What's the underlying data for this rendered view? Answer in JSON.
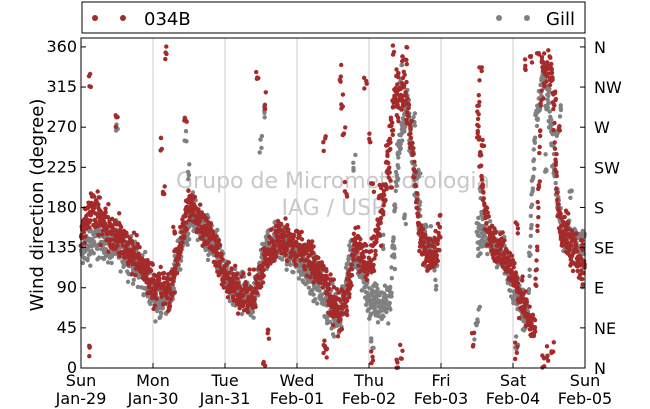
{
  "chart_data": {
    "type": "scatter",
    "ylabel": "Wind direction (degree)",
    "ylim": [
      0,
      370
    ],
    "y_ticks": [
      0,
      45,
      90,
      135,
      180,
      225,
      270,
      315,
      360
    ],
    "y_tick_labels": [
      "0",
      "45",
      "90",
      "135",
      "180",
      "225",
      "270",
      "315",
      "360"
    ],
    "right_axis_labels": [
      "N",
      "NE",
      "E",
      "SE",
      "S",
      "SW",
      "W",
      "NW",
      "N"
    ],
    "xlim_days": [
      0,
      7
    ],
    "x_ticks": [
      {
        "day": 0,
        "weekday": "Sun",
        "date": "Jan-29"
      },
      {
        "day": 1,
        "weekday": "Mon",
        "date": "Jan-30"
      },
      {
        "day": 2,
        "weekday": "Tue",
        "date": "Jan-31"
      },
      {
        "day": 3,
        "weekday": "Wed",
        "date": "Feb-01"
      },
      {
        "day": 4,
        "weekday": "Thu",
        "date": "Feb-02"
      },
      {
        "day": 5,
        "weekday": "Fri",
        "date": "Feb-03"
      },
      {
        "day": 6,
        "weekday": "Sat",
        "date": "Feb-04"
      },
      {
        "day": 7,
        "weekday": "Sun",
        "date": "Feb-05"
      }
    ],
    "grid": "vertical",
    "watermark": [
      "Grupo de Micrometeorologia",
      "IAG / USP"
    ],
    "legend": [
      {
        "name": "034B",
        "color": "#a52a2a",
        "placement": "left"
      },
      {
        "name": "Gill",
        "color": "#808080",
        "placement": "right"
      }
    ],
    "series": [
      {
        "name": "034B",
        "color": "#a52a2a",
        "profile": [
          [
            0.0,
            150
          ],
          [
            0.15,
            180
          ],
          [
            0.35,
            160
          ],
          [
            0.55,
            145
          ],
          [
            0.8,
            120
          ],
          [
            1.0,
            95
          ],
          [
            1.12,
            90
          ],
          [
            1.25,
            85
          ],
          [
            1.4,
            150
          ],
          [
            1.5,
            185
          ],
          [
            1.7,
            160
          ],
          [
            1.85,
            140
          ],
          [
            2.0,
            100
          ],
          [
            2.2,
            85
          ],
          [
            2.4,
            80
          ],
          [
            2.55,
            120
          ],
          [
            2.75,
            150
          ],
          [
            2.9,
            140
          ],
          [
            3.1,
            130
          ],
          [
            3.3,
            110
          ],
          [
            3.45,
            85
          ],
          [
            3.6,
            60
          ],
          [
            3.7,
            80
          ],
          [
            3.8,
            140
          ],
          [
            4.0,
            110
          ],
          [
            4.2,
            180
          ],
          [
            4.35,
            300
          ],
          [
            4.5,
            310
          ],
          [
            4.6,
            250
          ],
          [
            4.7,
            150
          ],
          [
            4.8,
            130
          ],
          [
            4.9,
            125
          ],
          [
            5.0,
            150
          ]
        ],
        "outliers": [
          [
            0.13,
            320
          ],
          [
            0.13,
            15
          ],
          [
            0.5,
            280
          ],
          [
            1.17,
            355
          ],
          [
            1.12,
            250
          ],
          [
            1.15,
            200
          ],
          [
            1.3,
            150
          ],
          [
            1.45,
            275
          ],
          [
            2.45,
            330
          ],
          [
            2.55,
            300
          ],
          [
            2.6,
            40
          ],
          [
            2.55,
            5
          ],
          [
            3.38,
            25
          ],
          [
            3.4,
            20
          ],
          [
            3.38,
            250
          ],
          [
            3.6,
            330
          ],
          [
            3.62,
            300
          ],
          [
            3.65,
            270
          ],
          [
            3.68,
            200
          ],
          [
            3.7,
            100
          ],
          [
            3.95,
            320
          ],
          [
            4.0,
            260
          ],
          [
            4.05,
            200
          ],
          [
            4.05,
            10
          ],
          [
            4.4,
            5
          ],
          [
            4.45,
            20
          ],
          [
            4.4,
            330
          ],
          [
            4.48,
            340
          ],
          [
            4.52,
            350
          ],
          [
            4.35,
            355
          ],
          [
            4.25,
            240
          ],
          [
            4.3,
            210
          ],
          [
            4.15,
            200
          ]
        ],
        "profile2": [
          [
            5.5,
            280
          ],
          [
            5.6,
            180
          ],
          [
            5.7,
            145
          ],
          [
            5.85,
            130
          ],
          [
            6.0,
            110
          ],
          [
            6.1,
            80
          ],
          [
            6.2,
            60
          ],
          [
            6.3,
            40
          ],
          [
            6.4,
            330
          ],
          [
            6.5,
            340
          ],
          [
            6.55,
            320
          ],
          [
            6.62,
            180
          ],
          [
            6.7,
            150
          ],
          [
            6.85,
            130
          ],
          [
            7.0,
            115
          ]
        ],
        "outliers2": [
          [
            5.55,
            330
          ],
          [
            5.52,
            300
          ],
          [
            5.58,
            250
          ],
          [
            5.45,
            30
          ],
          [
            6.05,
            20
          ],
          [
            6.18,
            340
          ],
          [
            6.25,
            350
          ],
          [
            6.35,
            355
          ],
          [
            6.42,
            10
          ],
          [
            6.48,
            15
          ],
          [
            6.55,
            25
          ],
          [
            6.6,
            300
          ],
          [
            6.65,
            270
          ],
          [
            6.05,
            160
          ],
          [
            6.75,
            170
          ]
        ]
      },
      {
        "name": "Gill",
        "color": "#808080",
        "profile": [
          [
            0.0,
            130
          ],
          [
            0.2,
            145
          ],
          [
            0.4,
            140
          ],
          [
            0.6,
            130
          ],
          [
            0.8,
            115
          ],
          [
            1.0,
            85
          ],
          [
            1.1,
            70
          ],
          [
            1.22,
            80
          ],
          [
            1.4,
            140
          ],
          [
            1.55,
            175
          ],
          [
            1.75,
            150
          ],
          [
            1.9,
            130
          ],
          [
            2.05,
            90
          ],
          [
            2.25,
            80
          ],
          [
            2.4,
            75
          ],
          [
            2.55,
            130
          ],
          [
            2.75,
            145
          ],
          [
            2.9,
            130
          ],
          [
            3.1,
            115
          ],
          [
            3.3,
            95
          ],
          [
            3.45,
            75
          ],
          [
            3.6,
            60
          ],
          [
            3.75,
            130
          ],
          [
            3.9,
            110
          ],
          [
            4.0,
            75
          ],
          [
            4.15,
            70
          ],
          [
            4.3,
            80
          ],
          [
            4.4,
            240
          ],
          [
            4.55,
            300
          ],
          [
            4.65,
            200
          ],
          [
            4.75,
            145
          ],
          [
            4.85,
            130
          ],
          [
            4.95,
            110
          ]
        ],
        "outliers": [
          [
            0.5,
            265
          ],
          [
            1.45,
            260
          ],
          [
            1.5,
            220
          ],
          [
            2.5,
            250
          ],
          [
            2.55,
            290
          ],
          [
            3.4,
            50
          ],
          [
            3.5,
            40
          ],
          [
            3.8,
            230
          ],
          [
            4.1,
            90
          ],
          [
            4.2,
            140
          ],
          [
            4.45,
            330
          ],
          [
            4.5,
            170
          ],
          [
            4.58,
            250
          ],
          [
            4.62,
            280
          ],
          [
            4.7,
            220
          ],
          [
            4.35,
            120
          ],
          [
            4.05,
            25
          ]
        ],
        "profile2": [
          [
            5.5,
            150
          ],
          [
            5.6,
            150
          ],
          [
            5.75,
            135
          ],
          [
            5.9,
            120
          ],
          [
            6.0,
            95
          ],
          [
            6.1,
            75
          ],
          [
            6.2,
            60
          ],
          [
            6.3,
            260
          ],
          [
            6.4,
            320
          ],
          [
            6.5,
            300
          ],
          [
            6.6,
            200
          ],
          [
            6.7,
            145
          ],
          [
            6.85,
            140
          ],
          [
            7.0,
            130
          ]
        ],
        "outliers2": [
          [
            5.52,
            60
          ],
          [
            5.55,
            200
          ],
          [
            5.48,
            40
          ],
          [
            6.15,
            50
          ],
          [
            6.45,
            230
          ],
          [
            6.6,
            260
          ],
          [
            6.65,
            290
          ],
          [
            6.8,
            200
          ],
          [
            6.95,
            100
          ],
          [
            6.05,
            30
          ]
        ]
      }
    ]
  }
}
